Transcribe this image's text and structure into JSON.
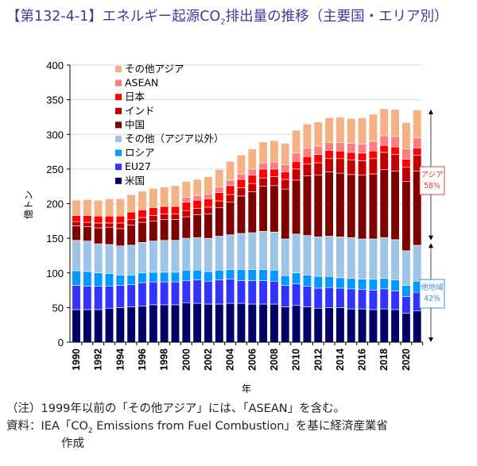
{
  "title": {
    "prefix": "【第132-4-1】エネルギー起源CO",
    "sub": "2",
    "suffix": "排出量の推移（主要国・エリア別）"
  },
  "notes": {
    "note": "（注）1999年以前の「その他アジア」には、「ASEAN」を含む。",
    "source_prefix": "資料：IEA「CO",
    "source_sub": "2",
    "source_suffix": " Emissions from Fuel Combustion」を基に経済産業省",
    "source_line2": "作成"
  },
  "chart_data": {
    "type": "bar",
    "stacked": true,
    "xlabel": "年",
    "ylabel": "億トン",
    "ylim": [
      0,
      400
    ],
    "yticks": [
      0,
      50,
      100,
      150,
      200,
      250,
      300,
      350,
      400
    ],
    "grid": true,
    "legend_position": "top-left",
    "categories": [
      1990,
      1991,
      1992,
      1993,
      1994,
      1995,
      1996,
      1997,
      1998,
      1999,
      2000,
      2001,
      2002,
      2003,
      2004,
      2005,
      2006,
      2007,
      2008,
      2009,
      2010,
      2011,
      2012,
      2013,
      2014,
      2015,
      2016,
      2017,
      2018,
      2019,
      2020,
      2021
    ],
    "xtick_labels": [
      "1990",
      "1992",
      "1994",
      "1996",
      "1998",
      "2000",
      "2002",
      "2004",
      "2006",
      "2008",
      "2010",
      "2012",
      "2014",
      "2016",
      "2018",
      "2020"
    ],
    "series": [
      {
        "name": "米国",
        "color": "#000066",
        "values": [
          47,
          47,
          47,
          49,
          50,
          51,
          52,
          54,
          54,
          54,
          57,
          56,
          55,
          55,
          56,
          56,
          55,
          55,
          55,
          51,
          53,
          51,
          49,
          50,
          50,
          48,
          48,
          47,
          48,
          47,
          42,
          45
        ]
      },
      {
        "name": "EU27",
        "color": "#3333ff",
        "values": [
          35,
          34,
          34,
          32,
          32,
          32,
          34,
          33,
          33,
          33,
          32,
          34,
          33,
          35,
          35,
          33,
          34,
          34,
          33,
          31,
          31,
          30,
          29,
          29,
          28,
          29,
          28,
          28,
          29,
          27,
          24,
          27
        ]
      },
      {
        "name": "ロシア",
        "color": "#0099ff",
        "values": [
          21,
          21,
          19,
          18,
          15,
          14,
          14,
          14,
          14,
          14,
          15,
          14,
          14,
          14,
          14,
          16,
          16,
          16,
          16,
          14,
          16,
          16,
          17,
          16,
          15,
          15,
          15,
          16,
          15,
          16,
          16,
          16
        ]
      },
      {
        "name": "その他（アジア以外）",
        "color": "#9dc3e6",
        "values": [
          44,
          44,
          42,
          42,
          42,
          43,
          44,
          45,
          46,
          46,
          46,
          47,
          48,
          49,
          50,
          52,
          53,
          55,
          55,
          53,
          56,
          57,
          57,
          58,
          59,
          59,
          58,
          58,
          59,
          58,
          50,
          52
        ]
      },
      {
        "name": "中国",
        "color": "#7f0000",
        "values": [
          21,
          21,
          23,
          25,
          25,
          29,
          29,
          29,
          30,
          30,
          31,
          33,
          35,
          41,
          47,
          54,
          59,
          65,
          67,
          72,
          78,
          86,
          89,
          93,
          92,
          91,
          92,
          94,
          98,
          99,
          100,
          107
        ]
      },
      {
        "name": "インド",
        "color": "#c00000",
        "values": [
          6,
          6,
          7,
          6,
          8,
          8,
          7,
          8,
          8,
          8,
          9,
          9,
          10,
          10,
          11,
          12,
          12,
          12,
          13,
          14,
          16,
          17,
          18,
          19,
          21,
          21,
          21,
          22,
          25,
          24,
          21,
          23
        ]
      },
      {
        "name": "日本",
        "color": "#ff0000",
        "values": [
          9,
          10,
          10,
          10,
          10,
          11,
          11,
          11,
          11,
          11,
          12,
          12,
          12,
          12,
          13,
          12,
          12,
          13,
          11,
          11,
          11,
          11,
          12,
          12,
          11,
          11,
          11,
          11,
          10,
          11,
          11,
          10
        ]
      },
      {
        "name": "ASEAN",
        "color": "#ff7c80",
        "values": [
          0,
          0,
          0,
          0,
          0,
          0,
          0,
          0,
          0,
          0,
          7,
          7,
          7,
          8,
          8,
          8,
          9,
          9,
          10,
          10,
          12,
          12,
          12,
          11,
          12,
          13,
          13,
          14,
          14,
          15,
          15,
          15
        ]
      },
      {
        "name": "その他アジア",
        "color": "#f4b183",
        "values": [
          22,
          23,
          23,
          25,
          25,
          25,
          27,
          28,
          28,
          30,
          23,
          23,
          25,
          25,
          27,
          27,
          29,
          30,
          31,
          31,
          33,
          35,
          35,
          36,
          37,
          36,
          38,
          39,
          39,
          39,
          38,
          40
        ]
      }
    ],
    "annotations": [
      {
        "label": "アジア",
        "value": "58%",
        "color": "#e03c3c"
      },
      {
        "label": "他地域",
        "value": "42%",
        "color": "#3a8fd6"
      }
    ]
  }
}
